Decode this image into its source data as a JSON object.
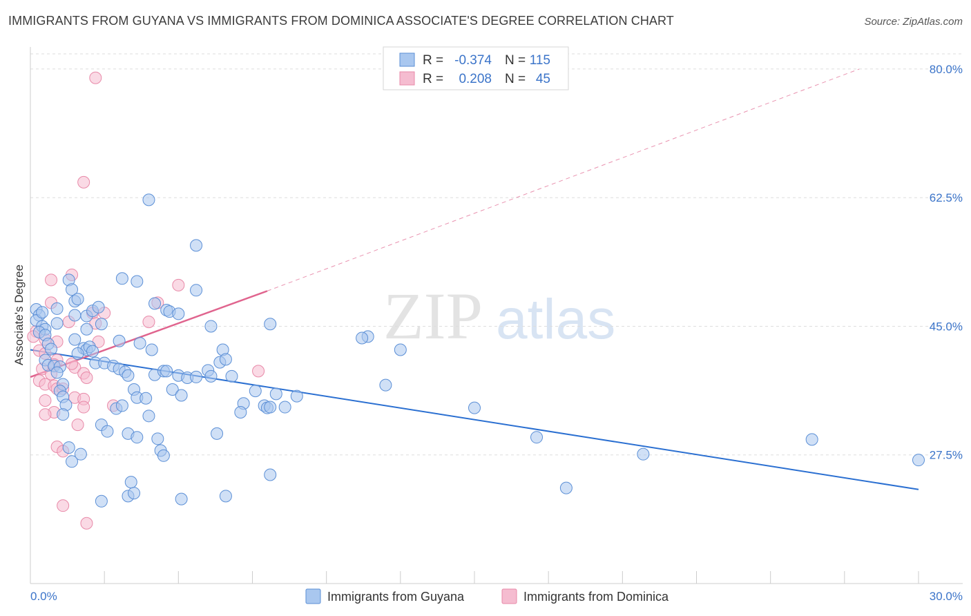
{
  "header": {
    "title": "IMMIGRANTS FROM GUYANA VS IMMIGRANTS FROM DOMINICA ASSOCIATE'S DEGREE CORRELATION CHART",
    "source": "Source: ZipAtlas.com"
  },
  "colors": {
    "guyana_fill": "#a9c7ef",
    "guyana_stroke": "#5b8fd6",
    "guyana_line": "#2a6fd1",
    "dominica_fill": "#f5bcd0",
    "dominica_stroke": "#e889a8",
    "dominica_line": "#e0648e",
    "grid": "#dddddd",
    "tick_text": "#3b74c9"
  },
  "legend": {
    "row1": {
      "r_label": "R =",
      "r_value": "-0.374",
      "n_label": "N =",
      "n_value": "115"
    },
    "row2": {
      "r_label": "R =",
      "r_value": "0.208",
      "n_label": "N =",
      "n_value": "45"
    }
  },
  "watermark": {
    "zip": "ZIP",
    "atlas": "atlas"
  },
  "chart_data": {
    "type": "scatter",
    "title": "IMMIGRANTS FROM GUYANA VS IMMIGRANTS FROM DOMINICA ASSOCIATE'S DEGREE CORRELATION CHART",
    "xlabel": "",
    "ylabel": "Associate's Degree",
    "xlim": [
      0,
      30
    ],
    "ylim": [
      10,
      83
    ],
    "x_tick_labels": [
      "0.0%",
      "30.0%"
    ],
    "y_ticks": [
      27.5,
      45.0,
      62.5,
      80.0
    ],
    "y_tick_labels": [
      "27.5%",
      "45.0%",
      "62.5%",
      "80.0%"
    ],
    "grid": true,
    "series": [
      {
        "name": "Immigrants from Guyana",
        "r": -0.374,
        "n": 115,
        "trend": {
          "x0": 0.0,
          "y0": 41.8,
          "x1": 30.0,
          "y1": 22.8,
          "dashed_to": null
        },
        "points": [
          [
            0.2,
            47.3
          ],
          [
            0.3,
            46.5
          ],
          [
            0.2,
            45.8
          ],
          [
            0.4,
            45.0
          ],
          [
            0.5,
            44.6
          ],
          [
            0.3,
            44.2
          ],
          [
            0.5,
            43.8
          ],
          [
            0.6,
            42.6
          ],
          [
            0.7,
            41.9
          ],
          [
            0.5,
            40.4
          ],
          [
            0.6,
            39.7
          ],
          [
            0.8,
            39.6
          ],
          [
            1.0,
            39.5
          ],
          [
            0.9,
            38.7
          ],
          [
            1.1,
            37.1
          ],
          [
            1.0,
            36.2
          ],
          [
            1.1,
            35.4
          ],
          [
            1.2,
            34.3
          ],
          [
            1.1,
            33.0
          ],
          [
            1.3,
            28.5
          ],
          [
            1.4,
            26.6
          ],
          [
            1.7,
            27.6
          ],
          [
            1.3,
            51.3
          ],
          [
            1.4,
            50.0
          ],
          [
            1.5,
            48.4
          ],
          [
            1.6,
            48.7
          ],
          [
            0.9,
            47.4
          ],
          [
            0.9,
            45.4
          ],
          [
            1.5,
            46.5
          ],
          [
            1.9,
            46.4
          ],
          [
            2.1,
            47.1
          ],
          [
            2.3,
            47.6
          ],
          [
            2.4,
            45.3
          ],
          [
            1.9,
            44.6
          ],
          [
            1.5,
            43.2
          ],
          [
            1.8,
            42.0
          ],
          [
            1.9,
            41.8
          ],
          [
            2.0,
            42.2
          ],
          [
            2.1,
            41.6
          ],
          [
            2.2,
            40.0
          ],
          [
            1.6,
            41.3
          ],
          [
            2.5,
            40.0
          ],
          [
            2.8,
            39.6
          ],
          [
            3.0,
            39.2
          ],
          [
            3.2,
            38.8
          ],
          [
            3.3,
            38.3
          ],
          [
            3.5,
            36.4
          ],
          [
            3.6,
            35.3
          ],
          [
            3.9,
            35.2
          ],
          [
            2.9,
            33.8
          ],
          [
            3.1,
            34.2
          ],
          [
            2.4,
            31.6
          ],
          [
            2.6,
            30.7
          ],
          [
            3.3,
            30.4
          ],
          [
            3.6,
            29.9
          ],
          [
            4.0,
            32.8
          ],
          [
            4.3,
            29.7
          ],
          [
            4.4,
            28.1
          ],
          [
            4.5,
            27.4
          ],
          [
            3.3,
            21.9
          ],
          [
            3.5,
            22.3
          ],
          [
            3.4,
            23.8
          ],
          [
            2.4,
            21.2
          ],
          [
            3.0,
            43.0
          ],
          [
            3.7,
            42.7
          ],
          [
            4.1,
            41.8
          ],
          [
            4.2,
            38.4
          ],
          [
            4.5,
            38.9
          ],
          [
            4.8,
            36.4
          ],
          [
            5.0,
            38.3
          ],
          [
            5.3,
            38.0
          ],
          [
            4.6,
            38.9
          ],
          [
            5.1,
            35.6
          ],
          [
            5.6,
            38.1
          ],
          [
            6.0,
            39.0
          ],
          [
            6.1,
            38.2
          ],
          [
            6.4,
            40.1
          ],
          [
            6.1,
            45.0
          ],
          [
            6.5,
            41.8
          ],
          [
            6.6,
            40.5
          ],
          [
            6.3,
            30.4
          ],
          [
            6.8,
            38.2
          ],
          [
            7.2,
            34.5
          ],
          [
            7.1,
            33.3
          ],
          [
            7.6,
            36.2
          ],
          [
            7.9,
            34.2
          ],
          [
            8.0,
            33.9
          ],
          [
            8.3,
            35.8
          ],
          [
            8.1,
            34.0
          ],
          [
            4.2,
            48.1
          ],
          [
            4.6,
            47.2
          ],
          [
            4.7,
            47.0
          ],
          [
            5.0,
            46.7
          ],
          [
            3.1,
            51.5
          ],
          [
            3.6,
            51.1
          ],
          [
            5.6,
            49.9
          ],
          [
            4.0,
            62.2
          ],
          [
            5.6,
            56.0
          ],
          [
            8.1,
            45.3
          ],
          [
            8.6,
            34.0
          ],
          [
            9.0,
            35.5
          ],
          [
            11.4,
            43.6
          ],
          [
            12.0,
            37.0
          ],
          [
            12.5,
            41.8
          ],
          [
            15.0,
            33.9
          ],
          [
            17.1,
            29.9
          ],
          [
            18.1,
            23.0
          ],
          [
            20.7,
            27.6
          ],
          [
            26.4,
            29.6
          ],
          [
            30.0,
            26.8
          ],
          [
            6.6,
            21.9
          ],
          [
            5.1,
            21.5
          ],
          [
            8.1,
            24.8
          ],
          [
            11.2,
            43.4
          ],
          [
            0.4,
            46.9
          ]
        ]
      },
      {
        "name": "Immigrants from Dominica",
        "r": 0.208,
        "n": 45,
        "trend": {
          "x0": 0.0,
          "y0": 38.1,
          "x1": 8.0,
          "y1": 49.8,
          "dashed_to": {
            "x": 28.0,
            "y": 80.0
          }
        },
        "points": [
          [
            2.2,
            78.8
          ],
          [
            1.8,
            64.6
          ],
          [
            1.4,
            52.0
          ],
          [
            0.7,
            51.3
          ],
          [
            5.0,
            50.6
          ],
          [
            0.7,
            48.2
          ],
          [
            4.3,
            48.2
          ],
          [
            4.0,
            45.6
          ],
          [
            2.1,
            46.8
          ],
          [
            1.3,
            45.6
          ],
          [
            2.2,
            45.4
          ],
          [
            0.2,
            44.3
          ],
          [
            0.5,
            43.2
          ],
          [
            0.9,
            42.9
          ],
          [
            0.3,
            41.7
          ],
          [
            0.5,
            41.3
          ],
          [
            2.3,
            42.9
          ],
          [
            0.9,
            40.4
          ],
          [
            0.8,
            39.8
          ],
          [
            1.5,
            39.4
          ],
          [
            1.8,
            38.6
          ],
          [
            1.4,
            39.9
          ],
          [
            0.4,
            39.2
          ],
          [
            0.7,
            38.5
          ],
          [
            1.9,
            38.0
          ],
          [
            0.3,
            37.6
          ],
          [
            0.5,
            37.1
          ],
          [
            0.8,
            36.9
          ],
          [
            0.9,
            36.5
          ],
          [
            1.1,
            36.5
          ],
          [
            1.5,
            35.3
          ],
          [
            1.8,
            35.1
          ],
          [
            0.5,
            34.9
          ],
          [
            2.8,
            34.2
          ],
          [
            1.8,
            34.0
          ],
          [
            0.8,
            33.3
          ],
          [
            0.5,
            33.0
          ],
          [
            1.6,
            31.6
          ],
          [
            0.9,
            28.6
          ],
          [
            1.1,
            28.0
          ],
          [
            2.5,
            46.8
          ],
          [
            7.7,
            38.9
          ],
          [
            1.1,
            20.6
          ],
          [
            1.9,
            18.2
          ],
          [
            0.1,
            43.6
          ]
        ]
      }
    ]
  },
  "bottom_legend": {
    "guyana": "Immigrants from Guyana",
    "dominica": "Immigrants from Dominica"
  }
}
